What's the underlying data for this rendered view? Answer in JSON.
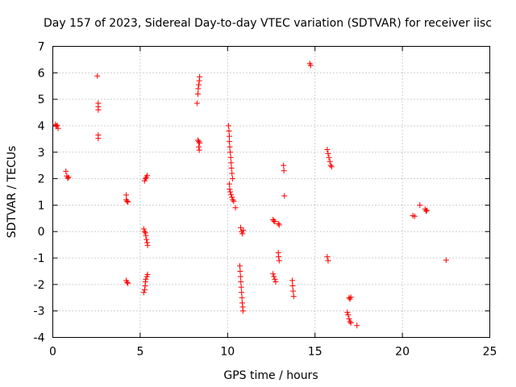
{
  "chart_data": {
    "type": "scatter",
    "title": "Day 157 of 2023, Sidereal Day-to-day VTEC variation (SDTVAR) for receiver iisc",
    "xlabel": "GPS time / hours",
    "ylabel": "SDTVAR / TECUs",
    "xlim": [
      0,
      25
    ],
    "ylim": [
      -4,
      7
    ],
    "xticks": [
      0,
      5,
      10,
      15,
      20,
      25
    ],
    "yticks": [
      -4,
      -3,
      -2,
      -1,
      0,
      1,
      2,
      3,
      4,
      5,
      6,
      7
    ],
    "grid": true,
    "marker": "+",
    "color": "#ff0000",
    "series": [
      {
        "name": "SDTVAR",
        "points": [
          [
            0.15,
            4.05
          ],
          [
            0.2,
            3.98
          ],
          [
            0.25,
            4.02
          ],
          [
            0.3,
            3.9
          ],
          [
            0.75,
            2.28
          ],
          [
            0.8,
            2.1
          ],
          [
            0.85,
            2.02
          ],
          [
            0.9,
            2.05
          ],
          [
            2.55,
            5.88
          ],
          [
            2.6,
            4.85
          ],
          [
            2.6,
            4.72
          ],
          [
            2.6,
            4.6
          ],
          [
            2.6,
            3.65
          ],
          [
            2.6,
            3.52
          ],
          [
            4.2,
            1.38
          ],
          [
            4.2,
            1.2
          ],
          [
            4.25,
            1.15
          ],
          [
            4.3,
            1.12
          ],
          [
            4.2,
            -1.85
          ],
          [
            4.25,
            -1.92
          ],
          [
            4.3,
            -1.95
          ],
          [
            5.2,
            -2.3
          ],
          [
            5.25,
            -2.2
          ],
          [
            5.28,
            -2.05
          ],
          [
            5.3,
            -1.9
          ],
          [
            5.32,
            -1.8
          ],
          [
            5.38,
            -1.7
          ],
          [
            5.42,
            -1.62
          ],
          [
            5.2,
            0.1
          ],
          [
            5.25,
            0.0
          ],
          [
            5.3,
            -0.05
          ],
          [
            5.32,
            -0.15
          ],
          [
            5.36,
            -0.3
          ],
          [
            5.4,
            -0.42
          ],
          [
            5.42,
            -0.52
          ],
          [
            5.25,
            1.92
          ],
          [
            5.3,
            2.0
          ],
          [
            5.35,
            2.05
          ],
          [
            5.4,
            2.12
          ],
          [
            8.25,
            4.85
          ],
          [
            8.3,
            5.2
          ],
          [
            8.32,
            5.4
          ],
          [
            8.35,
            5.55
          ],
          [
            8.38,
            5.7
          ],
          [
            8.4,
            5.85
          ],
          [
            8.3,
            3.45
          ],
          [
            8.35,
            3.4
          ],
          [
            8.4,
            3.35
          ],
          [
            8.35,
            3.2
          ],
          [
            8.38,
            3.08
          ],
          [
            10.05,
            4.0
          ],
          [
            10.08,
            3.8
          ],
          [
            10.1,
            3.6
          ],
          [
            10.1,
            3.4
          ],
          [
            10.12,
            3.2
          ],
          [
            10.15,
            3.0
          ],
          [
            10.18,
            2.8
          ],
          [
            10.2,
            2.6
          ],
          [
            10.22,
            2.4
          ],
          [
            10.25,
            2.2
          ],
          [
            10.28,
            2.0
          ],
          [
            10.1,
            1.8
          ],
          [
            10.12,
            1.6
          ],
          [
            10.15,
            1.5
          ],
          [
            10.2,
            1.4
          ],
          [
            10.25,
            1.3
          ],
          [
            10.3,
            1.2
          ],
          [
            10.35,
            1.15
          ],
          [
            10.45,
            0.9
          ],
          [
            10.7,
            -1.3
          ],
          [
            10.72,
            -1.5
          ],
          [
            10.74,
            -1.7
          ],
          [
            10.76,
            -1.9
          ],
          [
            10.78,
            -2.1
          ],
          [
            10.8,
            -2.3
          ],
          [
            10.82,
            -2.5
          ],
          [
            10.84,
            -2.7
          ],
          [
            10.86,
            -2.85
          ],
          [
            10.88,
            -3.0
          ],
          [
            10.75,
            0.15
          ],
          [
            10.8,
            0.0
          ],
          [
            10.85,
            -0.08
          ],
          [
            10.9,
            0.05
          ],
          [
            12.6,
            0.45
          ],
          [
            12.65,
            0.4
          ],
          [
            12.7,
            0.38
          ],
          [
            12.9,
            0.3
          ],
          [
            12.95,
            0.25
          ],
          [
            12.6,
            -1.6
          ],
          [
            12.65,
            -1.7
          ],
          [
            12.7,
            -1.8
          ],
          [
            12.75,
            -1.9
          ],
          [
            12.9,
            -0.8
          ],
          [
            12.92,
            -0.95
          ],
          [
            12.95,
            -1.1
          ],
          [
            13.2,
            2.5
          ],
          [
            13.22,
            2.3
          ],
          [
            13.25,
            1.35
          ],
          [
            13.7,
            -1.85
          ],
          [
            13.72,
            -2.05
          ],
          [
            13.75,
            -2.25
          ],
          [
            13.78,
            -2.45
          ],
          [
            14.7,
            6.35
          ],
          [
            14.75,
            6.28
          ],
          [
            15.7,
            3.1
          ],
          [
            15.75,
            2.95
          ],
          [
            15.8,
            2.8
          ],
          [
            15.85,
            2.65
          ],
          [
            15.9,
            2.5
          ],
          [
            15.95,
            2.45
          ],
          [
            15.7,
            -0.95
          ],
          [
            15.75,
            -1.1
          ],
          [
            16.85,
            -3.05
          ],
          [
            16.9,
            -3.15
          ],
          [
            16.95,
            -3.3
          ],
          [
            17.0,
            -3.4
          ],
          [
            17.05,
            -3.45
          ],
          [
            17.4,
            -3.55
          ],
          [
            16.95,
            -2.5
          ],
          [
            17.0,
            -2.55
          ],
          [
            17.05,
            -2.48
          ],
          [
            20.6,
            0.6
          ],
          [
            20.7,
            0.58
          ],
          [
            21.0,
            1.0
          ],
          [
            21.3,
            0.85
          ],
          [
            21.35,
            0.78
          ],
          [
            21.4,
            0.8
          ],
          [
            22.5,
            -1.08
          ]
        ]
      }
    ]
  }
}
